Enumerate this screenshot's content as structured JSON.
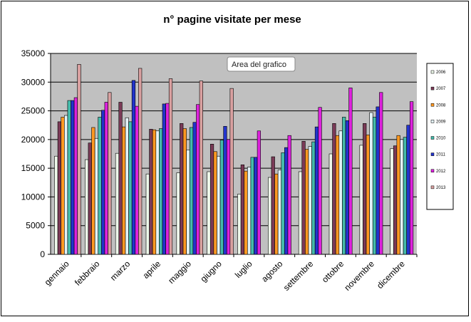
{
  "chart_data": {
    "type": "bar",
    "title": "n° pagine visitate per mese",
    "xlabel": "",
    "ylabel": "",
    "ylim": [
      0,
      35000
    ],
    "yticks": [
      0,
      5000,
      10000,
      15000,
      20000,
      25000,
      30000,
      35000
    ],
    "grid": true,
    "legend_position": "right",
    "tooltip": "Area del grafico",
    "categories": [
      "gennaio",
      "febbraio",
      "marzo",
      "aprile",
      "maggio",
      "giugno",
      "luglio",
      "agosto",
      "settembre",
      "ottobre",
      "novembre",
      "dicembre"
    ],
    "series": [
      {
        "name": "2006",
        "color": "#eef8ea",
        "values": [
          17100,
          16500,
          17600,
          14000,
          14200,
          14400,
          10500,
          13400,
          14400,
          17500,
          19000,
          18400
        ]
      },
      {
        "name": "2007",
        "color": "#7b3a57",
        "values": [
          23100,
          19400,
          26500,
          21800,
          22800,
          19200,
          15600,
          17000,
          19700,
          22800,
          22800,
          18900
        ]
      },
      {
        "name": "2008",
        "color": "#ff9922",
        "values": [
          23900,
          22100,
          22200,
          21700,
          21900,
          17900,
          14500,
          14000,
          18300,
          20700,
          20800,
          20700
        ]
      },
      {
        "name": "2009",
        "color": "#e3f2f7",
        "values": [
          24200,
          20200,
          23800,
          21500,
          18200,
          17100,
          15200,
          14700,
          18800,
          21500,
          24700,
          20000
        ]
      },
      {
        "name": "2010",
        "color": "#44bbaa",
        "values": [
          26800,
          23900,
          23100,
          21900,
          22100,
          19900,
          16900,
          17700,
          19600,
          23900,
          23900,
          20400
        ]
      },
      {
        "name": "2011",
        "color": "#2233cc",
        "values": [
          26800,
          25100,
          30300,
          26200,
          23000,
          22300,
          16900,
          18600,
          22200,
          23300,
          25700,
          22500
        ]
      },
      {
        "name": "2012",
        "color": "#dd22dd",
        "values": [
          27300,
          26500,
          25800,
          26300,
          26100,
          20000,
          21500,
          20700,
          25600,
          29000,
          28200,
          26600
        ]
      },
      {
        "name": "2013",
        "color": "#d9a0a0",
        "values": [
          33100,
          28200,
          32400,
          30600,
          30200,
          28900,
          null,
          null,
          null,
          null,
          null,
          null
        ]
      }
    ]
  }
}
